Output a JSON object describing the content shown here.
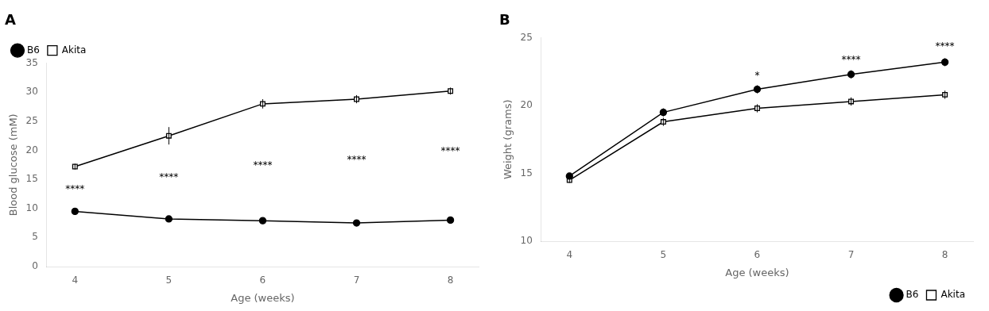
{
  "chart_data": [
    {
      "type": "line",
      "title": "A",
      "xlabel": "Age (weeks)",
      "ylabel": "Blood glucose (mM)",
      "x": [
        4,
        5,
        6,
        7,
        8
      ],
      "xlim": [
        3.7,
        8.3
      ],
      "xticks": [
        4,
        5,
        6,
        7,
        8
      ],
      "ylim": [
        0,
        35
      ],
      "yticks": [
        0,
        5,
        10,
        15,
        20,
        25,
        30,
        35
      ],
      "grid": false,
      "legend": "upper-left",
      "series": [
        {
          "name": "B6",
          "color": "#000000",
          "marker": "filled-circle",
          "values": [
            9.5,
            8.2,
            7.9,
            7.5,
            8.0
          ],
          "errors": [
            0.3,
            0.3,
            0.3,
            0.3,
            0.3
          ]
        },
        {
          "name": "Akita",
          "color": "#000000",
          "marker": "open-square",
          "values": [
            17.2,
            22.5,
            28.0,
            28.8,
            30.2
          ],
          "errors": [
            0.5,
            1.5,
            0.8,
            0.7,
            0.6
          ]
        }
      ],
      "annotations": [
        {
          "x": 4,
          "y": 12.5,
          "text": "****"
        },
        {
          "x": 5,
          "y": 14.5,
          "text": "****"
        },
        {
          "x": 6,
          "y": 16.5,
          "text": "****"
        },
        {
          "x": 7,
          "y": 17.5,
          "text": "****"
        },
        {
          "x": 8,
          "y": 19.0,
          "text": "****"
        }
      ]
    },
    {
      "type": "line",
      "title": "B",
      "xlabel": "Age (weeks)",
      "ylabel": "Weight (grams)",
      "x": [
        4,
        5,
        6,
        7,
        8
      ],
      "xlim": [
        3.7,
        8.3
      ],
      "xticks": [
        4,
        5,
        6,
        7,
        8
      ],
      "ylim": [
        10,
        25
      ],
      "yticks": [
        10,
        15,
        20,
        25
      ],
      "grid": false,
      "legend": "lower-right",
      "series": [
        {
          "name": "B6",
          "color": "#000000",
          "marker": "filled-circle",
          "values": [
            14.8,
            19.5,
            21.2,
            22.3,
            23.2
          ],
          "errors": [
            0.2,
            0.3,
            0.3,
            0.3,
            0.3
          ]
        },
        {
          "name": "Akita",
          "color": "#000000",
          "marker": "open-square",
          "values": [
            14.5,
            18.8,
            19.8,
            20.3,
            20.8
          ],
          "errors": [
            0.2,
            0.3,
            0.3,
            0.3,
            0.3
          ]
        }
      ],
      "annotations": [
        {
          "x": 6,
          "y": 21.8,
          "text": "*"
        },
        {
          "x": 7,
          "y": 23.0,
          "text": "****"
        },
        {
          "x": 8,
          "y": 24.0,
          "text": "****"
        }
      ]
    }
  ]
}
